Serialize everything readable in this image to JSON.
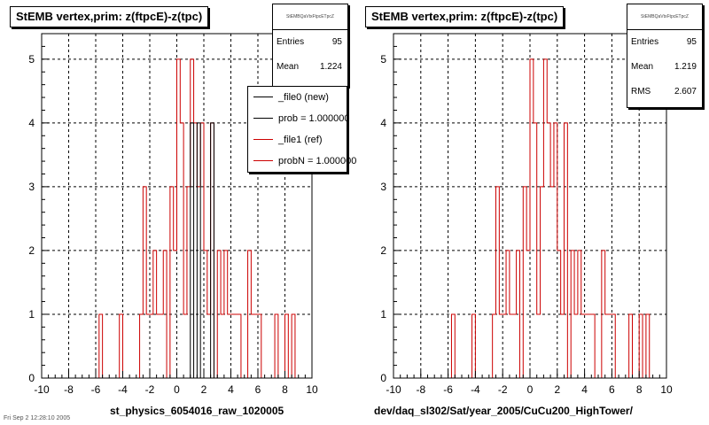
{
  "colors": {
    "ref": "#cc0000",
    "new": "#000000",
    "grid": "#000000"
  },
  "left": {
    "title": "StEMB  vertex,prim: z(ftpcE)-z(tpc)",
    "caption": "st_physics_6054016_raw_1020005",
    "stats": {
      "name": "StEMBQaVtxFtpcETpcZ",
      "entries_label": "Entries",
      "entries": "95",
      "mean_label": "Mean",
      "mean": "1.224"
    },
    "legend": [
      {
        "label": "_file0 (new)",
        "color": "#000000"
      },
      {
        "label": "prob = 1.000000",
        "color": "#000000"
      },
      {
        "label": "_file1 (ref)",
        "color": "#cc0000"
      },
      {
        "label": "probN = 1.000000",
        "color": "#cc0000"
      }
    ]
  },
  "right": {
    "title": "StEMB  vertex,prim: z(ftpcE)-z(tpc)",
    "caption": "dev/daq_sl302/Sat/year_2005/CuCu200_HighTower/",
    "stats": {
      "name": "StEMBQaVtxFtpcETpcZ",
      "entries_label": "Entries",
      "entries": "95",
      "mean_label": "Mean",
      "mean": "1.219",
      "rms_label": "RMS",
      "rms": "2.607"
    }
  },
  "footer_stamp": "Fri Sep  2 12:28:10 2005",
  "chart_data": [
    {
      "type": "bar",
      "title": "StEMB  vertex,prim: z(ftpcE)-z(tpc)",
      "xlabel": "st_physics_6054016_raw_1020005",
      "ylabel": "",
      "xlim": [
        -10,
        10
      ],
      "ylim": [
        0,
        5.4
      ],
      "xticks": [
        "-10",
        "-8",
        "-6",
        "-4",
        "-2",
        "0",
        "2",
        "4",
        "6",
        "8",
        "10"
      ],
      "yticks": [
        "0",
        "1",
        "2",
        "3",
        "4",
        "5"
      ],
      "bin_width": 0.25,
      "grid": true,
      "legend_position": "top-right",
      "series": [
        {
          "name": "_file1 (ref)",
          "color": "#cc0000",
          "bins": [
            [
              -5.75,
              1
            ],
            [
              -4.25,
              1
            ],
            [
              -2.75,
              1
            ],
            [
              -2.5,
              3
            ],
            [
              -2.25,
              1
            ],
            [
              -2.0,
              1
            ],
            [
              -1.75,
              2
            ],
            [
              -1.5,
              1
            ],
            [
              -1.25,
              1
            ],
            [
              -1.0,
              2
            ],
            [
              -0.5,
              3
            ],
            [
              -0.25,
              2
            ],
            [
              0.0,
              5
            ],
            [
              0.25,
              4
            ],
            [
              0.5,
              1
            ],
            [
              0.75,
              3
            ],
            [
              1.0,
              5
            ],
            [
              1.25,
              4
            ],
            [
              1.5,
              3
            ],
            [
              1.75,
              4
            ],
            [
              2.0,
              2
            ],
            [
              2.25,
              1
            ],
            [
              2.5,
              4
            ],
            [
              3.0,
              2
            ],
            [
              3.25,
              1
            ],
            [
              3.5,
              2
            ],
            [
              3.75,
              1
            ],
            [
              4.0,
              1
            ],
            [
              4.25,
              1
            ],
            [
              4.5,
              1
            ],
            [
              5.25,
              2
            ],
            [
              5.5,
              1
            ],
            [
              5.75,
              1
            ],
            [
              6.0,
              1
            ],
            [
              7.25,
              1
            ],
            [
              8.0,
              1
            ],
            [
              8.5,
              1
            ]
          ]
        },
        {
          "name": "_file0 (new)",
          "color": "#000000",
          "bins": [
            [
              1.0,
              4
            ],
            [
              1.5,
              4
            ],
            [
              2.5,
              4
            ]
          ]
        }
      ]
    },
    {
      "type": "bar",
      "title": "StEMB  vertex,prim: z(ftpcE)-z(tpc)",
      "xlabel": "dev/daq_sl302/Sat/year_2005/CuCu200_HighTower/",
      "ylabel": "",
      "xlim": [
        -10,
        10
      ],
      "ylim": [
        0,
        5.4
      ],
      "xticks": [
        "-10",
        "-8",
        "-6",
        "-4",
        "-2",
        "0",
        "2",
        "4",
        "6",
        "8",
        "10"
      ],
      "yticks": [
        "0",
        "1",
        "2",
        "3",
        "4",
        "5"
      ],
      "bin_width": 0.25,
      "grid": true,
      "series": [
        {
          "name": "_file1 (ref)",
          "color": "#cc0000",
          "bins": [
            [
              -5.75,
              1
            ],
            [
              -4.25,
              1
            ],
            [
              -2.75,
              1
            ],
            [
              -2.5,
              3
            ],
            [
              -2.25,
              1
            ],
            [
              -2.0,
              1
            ],
            [
              -1.75,
              2
            ],
            [
              -1.5,
              1
            ],
            [
              -1.25,
              1
            ],
            [
              -1.0,
              2
            ],
            [
              -0.5,
              3
            ],
            [
              -0.25,
              2
            ],
            [
              0.0,
              5
            ],
            [
              0.25,
              4
            ],
            [
              0.5,
              1
            ],
            [
              0.75,
              3
            ],
            [
              1.0,
              5
            ],
            [
              1.25,
              4
            ],
            [
              1.5,
              3
            ],
            [
              1.75,
              4
            ],
            [
              2.0,
              2
            ],
            [
              2.25,
              1
            ],
            [
              2.5,
              4
            ],
            [
              3.0,
              2
            ],
            [
              3.25,
              1
            ],
            [
              3.5,
              2
            ],
            [
              3.75,
              1
            ],
            [
              4.0,
              1
            ],
            [
              4.25,
              1
            ],
            [
              4.5,
              1
            ],
            [
              5.25,
              2
            ],
            [
              5.5,
              1
            ],
            [
              5.75,
              1
            ],
            [
              6.0,
              1
            ],
            [
              7.25,
              1
            ],
            [
              8.0,
              1
            ],
            [
              8.5,
              1
            ]
          ]
        }
      ]
    }
  ]
}
